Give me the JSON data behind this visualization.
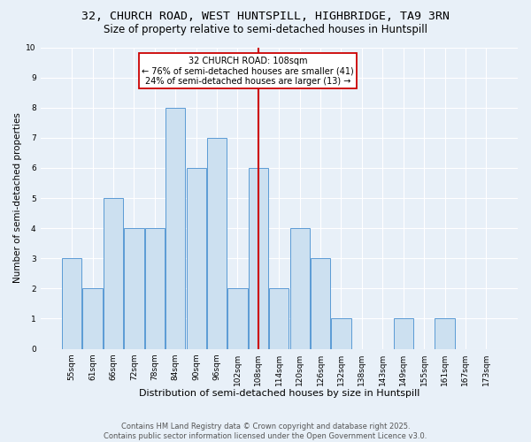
{
  "title_line1": "32, CHURCH ROAD, WEST HUNTSPILL, HIGHBRIDGE, TA9 3RN",
  "title_line2": "Size of property relative to semi-detached houses in Huntspill",
  "xlabel": "Distribution of semi-detached houses by size in Huntspill",
  "ylabel": "Number of semi-detached properties",
  "categories": [
    "55sqm",
    "61sqm",
    "66sqm",
    "72sqm",
    "78sqm",
    "84sqm",
    "90sqm",
    "96sqm",
    "102sqm",
    "108sqm",
    "114sqm",
    "120sqm",
    "126sqm",
    "132sqm",
    "138sqm",
    "143sqm",
    "149sqm",
    "155sqm",
    "161sqm",
    "167sqm",
    "173sqm"
  ],
  "values": [
    3,
    2,
    5,
    4,
    4,
    8,
    6,
    7,
    2,
    6,
    2,
    4,
    3,
    1,
    0,
    0,
    1,
    0,
    1,
    0,
    0
  ],
  "highlight_index": 9,
  "bar_color": "#cce0f0",
  "bar_edge_color": "#5b9bd5",
  "highlight_line_color": "#cc0000",
  "annotation_text": "32 CHURCH ROAD: 108sqm\n← 76% of semi-detached houses are smaller (41)\n24% of semi-detached houses are larger (13) →",
  "annotation_box_color": "#cc0000",
  "background_color": "#e8f0f8",
  "grid_color": "#ffffff",
  "ylim": [
    0,
    10
  ],
  "yticks": [
    0,
    1,
    2,
    3,
    4,
    5,
    6,
    7,
    8,
    9,
    10
  ],
  "footer_text": "Contains HM Land Registry data © Crown copyright and database right 2025.\nContains public sector information licensed under the Open Government Licence v3.0.",
  "title_fontsize": 9.5,
  "subtitle_fontsize": 8.5,
  "xlabel_fontsize": 8,
  "ylabel_fontsize": 7.5,
  "tick_fontsize": 6.5,
  "annotation_fontsize": 7,
  "footer_fontsize": 6
}
